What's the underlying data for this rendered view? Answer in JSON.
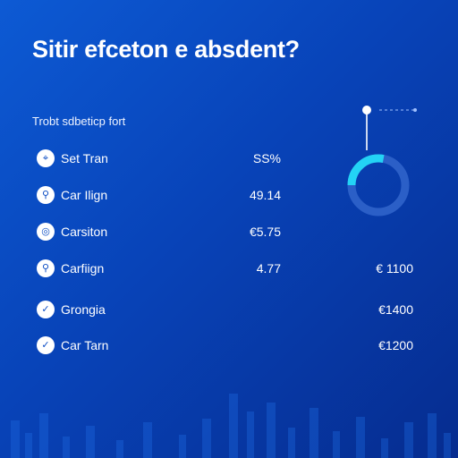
{
  "header": {
    "title": "Sitir efceton e absdent?",
    "subtitle": "Trobt sdbeticp fort"
  },
  "rows": [
    {
      "icon": "tag-icon",
      "glyph": "⌖",
      "label": "Set Tran",
      "value": "SS%",
      "amount": ""
    },
    {
      "icon": "link-icon",
      "glyph": "⚲",
      "label": "Car Ilign",
      "value": "49.14",
      "amount": ""
    },
    {
      "icon": "coin-icon",
      "glyph": "◎",
      "label": "Carsiton",
      "value": "€5.75",
      "amount": ""
    },
    {
      "icon": "link-icon",
      "glyph": "⚲",
      "label": "Carfiign",
      "value": "4.77",
      "amount": "€ 1100"
    },
    {
      "icon": "shield-icon",
      "glyph": "✓",
      "label": "Grongia",
      "value": "",
      "amount": "€1400"
    },
    {
      "icon": "check-icon",
      "glyph": "✓",
      "label": "Car Tarn",
      "value": "",
      "amount": "€1200"
    }
  ],
  "donut": {
    "fraction": 0.28
  },
  "colors": {
    "accent": "#23d3f5",
    "ring": "#2b5fc7",
    "bg_start": "#0d5ad4",
    "bg_end": "#062c8f"
  }
}
